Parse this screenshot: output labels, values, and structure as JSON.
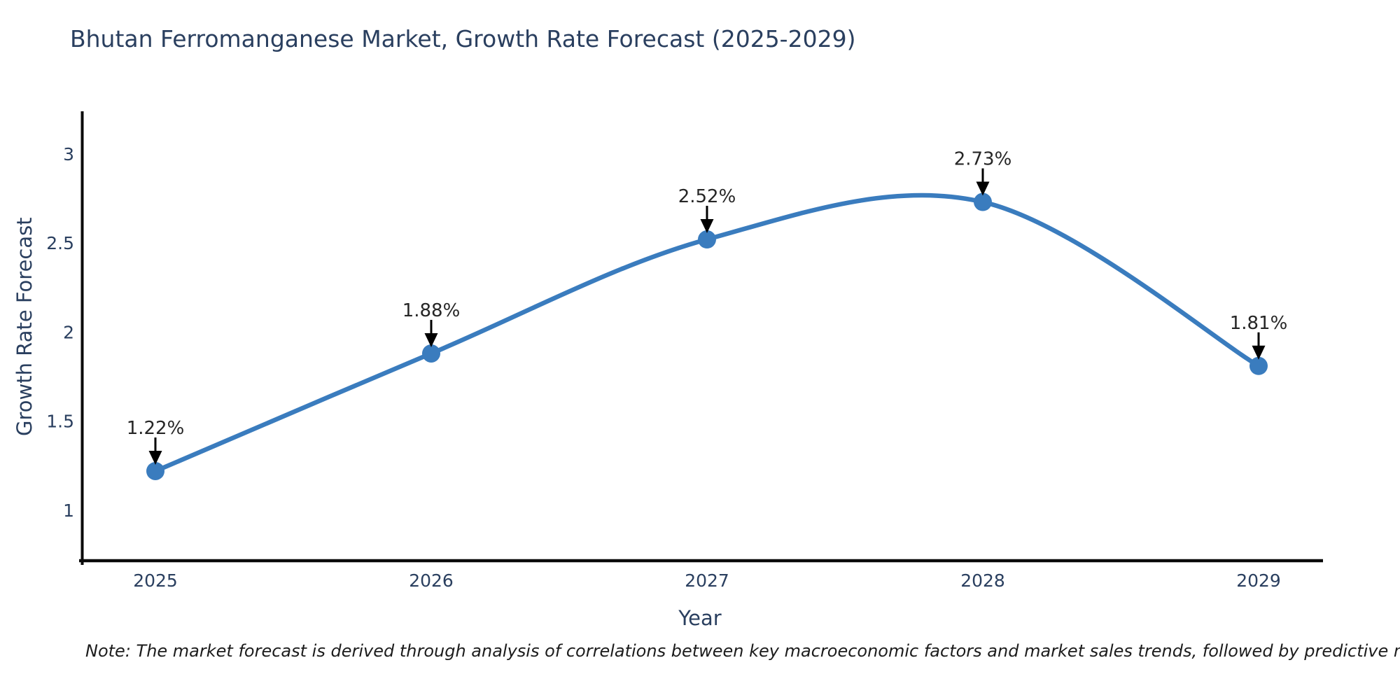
{
  "title": "Bhutan Ferromanganese Market, Growth Rate Forecast (2025-2029)",
  "footnote": "Note: The market forecast is derived through analysis of correlations between key macroeconomic factors and market sales trends, followed by predictive modeling to project future sales.",
  "chart_data": {
    "type": "line",
    "title": "Bhutan Ferromanganese Market, Growth Rate Forecast (2025-2029)",
    "xlabel": "Year",
    "ylabel": "Growth Rate Forecast",
    "categories": [
      "2025",
      "2026",
      "2027",
      "2028",
      "2029"
    ],
    "values": [
      1.22,
      1.88,
      2.52,
      2.73,
      1.81
    ],
    "point_labels": [
      "1.22%",
      "1.88%",
      "2.52%",
      "2.73%",
      "1.81%"
    ],
    "y_ticks": [
      1,
      1.5,
      2,
      2.5,
      3
    ],
    "ylim": [
      0.72,
      3.25
    ],
    "grid": false,
    "legend_position": "none",
    "line_shape": "spline",
    "annotations": "black arrows pointing down to each data point with percentage labels",
    "colors": {
      "line": "#3a7cbe",
      "marker": "#3a7cbe",
      "axis": "#0a0a0a",
      "tick_labels": "#2a3f5f",
      "axis_titles": "#2a3f5f",
      "point_labels": "#262626",
      "arrow": "#000000",
      "title": "#2a3f5f",
      "background": "#ffffff"
    }
  }
}
